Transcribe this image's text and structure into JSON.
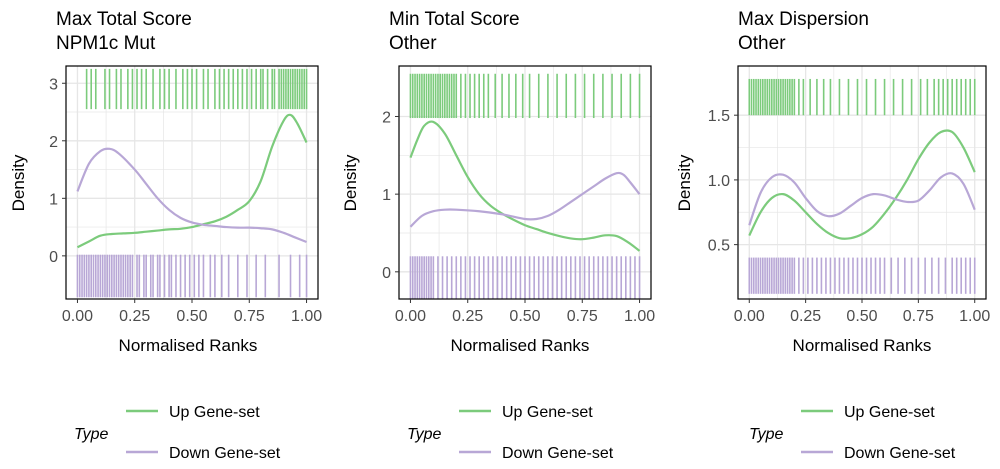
{
  "colors": {
    "up": "#7ccb7c",
    "down": "#b8a7d6",
    "grid": "#e6e6e6",
    "panel_border": "#000000",
    "tick_text": "#4d4d4d"
  },
  "chart_data": [
    {
      "type": "density_barcode",
      "title_line1": "Max Total Score",
      "title_line2": "NPM1c Mut",
      "xlabel": "Normalised Ranks",
      "ylabel": "Density",
      "xlim": [
        -0.05,
        1.05
      ],
      "ylim": [
        -0.75,
        3.3
      ],
      "xticks": [
        0,
        0.25,
        0.5,
        0.75,
        1
      ],
      "xtick_labels": [
        "0.00",
        "0.25",
        "0.50",
        "0.75",
        "1.00"
      ],
      "yticks": [
        0,
        1,
        2,
        3
      ],
      "ytick_labels": [
        "0",
        "1",
        "2",
        "3"
      ],
      "grid": true,
      "legend_title": "Type",
      "legend_position": "bottom",
      "series": [
        {
          "name": "Up Gene-set",
          "x": [
            0.0,
            0.05,
            0.1,
            0.15,
            0.2,
            0.25,
            0.3,
            0.35,
            0.4,
            0.45,
            0.5,
            0.55,
            0.6,
            0.65,
            0.7,
            0.75,
            0.8,
            0.85,
            0.9,
            0.93,
            0.96,
            1.0
          ],
          "y": [
            0.15,
            0.25,
            0.35,
            0.38,
            0.39,
            0.4,
            0.42,
            0.44,
            0.46,
            0.47,
            0.5,
            0.55,
            0.6,
            0.68,
            0.8,
            0.95,
            1.3,
            1.9,
            2.35,
            2.45,
            2.3,
            1.97
          ],
          "barcode_y": [
            2.55,
            3.25
          ],
          "barcode_ranks": [
            0.04,
            0.06,
            0.08,
            0.12,
            0.14,
            0.17,
            0.19,
            0.22,
            0.24,
            0.26,
            0.28,
            0.3,
            0.33,
            0.36,
            0.38,
            0.4,
            0.43,
            0.46,
            0.48,
            0.5,
            0.52,
            0.55,
            0.57,
            0.6,
            0.62,
            0.64,
            0.66,
            0.68,
            0.7,
            0.72,
            0.74,
            0.76,
            0.78,
            0.8,
            0.81,
            0.83,
            0.85,
            0.86,
            0.88,
            0.89,
            0.9,
            0.91,
            0.92,
            0.93,
            0.94,
            0.95,
            0.96,
            0.97,
            0.98,
            0.99,
            1.0
          ]
        },
        {
          "name": "Down Gene-set",
          "x": [
            0.0,
            0.05,
            0.1,
            0.14,
            0.18,
            0.25,
            0.3,
            0.35,
            0.4,
            0.45,
            0.5,
            0.55,
            0.6,
            0.65,
            0.7,
            0.75,
            0.8,
            0.85,
            0.9,
            0.95,
            1.0
          ],
          "y": [
            1.12,
            1.6,
            1.82,
            1.86,
            1.78,
            1.5,
            1.25,
            1.0,
            0.8,
            0.66,
            0.58,
            0.54,
            0.52,
            0.5,
            0.49,
            0.49,
            0.48,
            0.46,
            0.4,
            0.32,
            0.24
          ],
          "barcode_y": [
            -0.72,
            0.02
          ],
          "barcode_ranks": [
            0.0,
            0.01,
            0.02,
            0.03,
            0.04,
            0.05,
            0.06,
            0.07,
            0.08,
            0.09,
            0.1,
            0.11,
            0.12,
            0.13,
            0.14,
            0.15,
            0.16,
            0.17,
            0.18,
            0.19,
            0.2,
            0.21,
            0.22,
            0.23,
            0.24,
            0.26,
            0.27,
            0.29,
            0.3,
            0.32,
            0.33,
            0.35,
            0.36,
            0.38,
            0.4,
            0.41,
            0.43,
            0.45,
            0.47,
            0.49,
            0.51,
            0.53,
            0.55,
            0.58,
            0.6,
            0.63,
            0.66,
            0.7,
            0.74,
            0.78,
            0.82,
            0.88,
            0.93,
            0.97,
            1.0
          ]
        }
      ]
    },
    {
      "type": "density_barcode",
      "title_line1": "Min Total Score",
      "title_line2": "Other",
      "xlabel": "Normalised Ranks",
      "ylabel": "Density",
      "xlim": [
        -0.05,
        1.05
      ],
      "ylim": [
        -0.35,
        2.65
      ],
      "xticks": [
        0,
        0.25,
        0.5,
        0.75,
        1
      ],
      "xtick_labels": [
        "0.00",
        "0.25",
        "0.50",
        "0.75",
        "1.00"
      ],
      "yticks": [
        0,
        1,
        2
      ],
      "ytick_labels": [
        "0",
        "1",
        "2"
      ],
      "grid": true,
      "legend_title": "Type",
      "legend_position": "bottom",
      "series": [
        {
          "name": "Up Gene-set",
          "x": [
            0.0,
            0.03,
            0.06,
            0.1,
            0.15,
            0.2,
            0.25,
            0.3,
            0.35,
            0.4,
            0.45,
            0.5,
            0.55,
            0.6,
            0.65,
            0.7,
            0.75,
            0.8,
            0.85,
            0.9,
            0.95,
            1.0
          ],
          "y": [
            1.47,
            1.7,
            1.88,
            1.93,
            1.78,
            1.5,
            1.22,
            1.0,
            0.85,
            0.75,
            0.67,
            0.6,
            0.55,
            0.5,
            0.46,
            0.43,
            0.42,
            0.44,
            0.47,
            0.46,
            0.38,
            0.27
          ],
          "barcode_y": [
            1.98,
            2.55
          ],
          "barcode_ranks": [
            0.0,
            0.01,
            0.02,
            0.03,
            0.04,
            0.05,
            0.06,
            0.07,
            0.08,
            0.09,
            0.1,
            0.11,
            0.12,
            0.13,
            0.14,
            0.15,
            0.16,
            0.17,
            0.18,
            0.19,
            0.2,
            0.22,
            0.24,
            0.26,
            0.28,
            0.3,
            0.32,
            0.34,
            0.37,
            0.4,
            0.43,
            0.46,
            0.49,
            0.52,
            0.56,
            0.6,
            0.64,
            0.68,
            0.72,
            0.76,
            0.8,
            0.84,
            0.88,
            0.92,
            0.96,
            1.0
          ]
        },
        {
          "name": "Down Gene-set",
          "x": [
            0.0,
            0.05,
            0.1,
            0.15,
            0.2,
            0.3,
            0.4,
            0.5,
            0.55,
            0.6,
            0.65,
            0.7,
            0.75,
            0.8,
            0.85,
            0.9,
            0.93,
            0.96,
            1.0
          ],
          "y": [
            0.58,
            0.72,
            0.78,
            0.8,
            0.8,
            0.78,
            0.74,
            0.68,
            0.68,
            0.72,
            0.8,
            0.9,
            1.0,
            1.1,
            1.2,
            1.27,
            1.25,
            1.15,
            1.0
          ],
          "barcode_y": [
            -0.35,
            0.2
          ],
          "barcode_ranks": [
            0.0,
            0.01,
            0.02,
            0.03,
            0.04,
            0.05,
            0.06,
            0.07,
            0.08,
            0.09,
            0.1,
            0.12,
            0.14,
            0.16,
            0.18,
            0.2,
            0.22,
            0.24,
            0.26,
            0.28,
            0.3,
            0.32,
            0.34,
            0.36,
            0.38,
            0.4,
            0.42,
            0.44,
            0.46,
            0.48,
            0.5,
            0.52,
            0.54,
            0.56,
            0.58,
            0.6,
            0.62,
            0.64,
            0.66,
            0.68,
            0.7,
            0.72,
            0.74,
            0.76,
            0.78,
            0.8,
            0.82,
            0.84,
            0.86,
            0.88,
            0.9,
            0.92,
            0.94,
            0.96,
            0.98,
            1.0
          ]
        }
      ]
    },
    {
      "type": "density_barcode",
      "title_line1": "Max Dispersion",
      "title_line2": "Other",
      "xlabel": "Normalised Ranks",
      "ylabel": "Density",
      "xlim": [
        -0.05,
        1.05
      ],
      "ylim": [
        0.08,
        1.88
      ],
      "xticks": [
        0,
        0.25,
        0.5,
        0.75,
        1
      ],
      "xtick_labels": [
        "0.00",
        "0.25",
        "0.50",
        "0.75",
        "1.00"
      ],
      "yticks": [
        0.5,
        1.0,
        1.5
      ],
      "ytick_labels": [
        "0.5",
        "1.0",
        "1.5"
      ],
      "grid": true,
      "legend_title": "Type",
      "legend_position": "bottom",
      "series": [
        {
          "name": "Up Gene-set",
          "x": [
            0.0,
            0.05,
            0.1,
            0.15,
            0.2,
            0.25,
            0.3,
            0.35,
            0.4,
            0.45,
            0.5,
            0.55,
            0.6,
            0.65,
            0.7,
            0.75,
            0.8,
            0.85,
            0.9,
            0.95,
            1.0
          ],
          "y": [
            0.57,
            0.75,
            0.86,
            0.89,
            0.84,
            0.75,
            0.66,
            0.59,
            0.55,
            0.55,
            0.58,
            0.64,
            0.74,
            0.86,
            1.0,
            1.16,
            1.29,
            1.37,
            1.37,
            1.25,
            1.06
          ],
          "barcode_y": [
            1.5,
            1.78
          ],
          "barcode_ranks": [
            0.0,
            0.01,
            0.02,
            0.03,
            0.04,
            0.05,
            0.06,
            0.07,
            0.08,
            0.09,
            0.1,
            0.11,
            0.12,
            0.13,
            0.14,
            0.15,
            0.16,
            0.17,
            0.18,
            0.19,
            0.2,
            0.22,
            0.24,
            0.27,
            0.3,
            0.33,
            0.36,
            0.4,
            0.44,
            0.48,
            0.52,
            0.56,
            0.6,
            0.64,
            0.68,
            0.72,
            0.76,
            0.79,
            0.82,
            0.84,
            0.86,
            0.88,
            0.9,
            0.92,
            0.94,
            0.96,
            0.98,
            1.0
          ]
        },
        {
          "name": "Down Gene-set",
          "x": [
            0.0,
            0.05,
            0.1,
            0.15,
            0.2,
            0.25,
            0.3,
            0.35,
            0.4,
            0.45,
            0.5,
            0.55,
            0.6,
            0.65,
            0.7,
            0.75,
            0.8,
            0.85,
            0.9,
            0.95,
            1.0
          ],
          "y": [
            0.65,
            0.9,
            1.02,
            1.04,
            0.98,
            0.86,
            0.76,
            0.72,
            0.74,
            0.8,
            0.86,
            0.89,
            0.88,
            0.85,
            0.83,
            0.84,
            0.92,
            1.02,
            1.05,
            0.97,
            0.77
          ],
          "barcode_y": [
            0.12,
            0.4
          ],
          "barcode_ranks": [
            0.0,
            0.01,
            0.02,
            0.03,
            0.04,
            0.05,
            0.06,
            0.07,
            0.08,
            0.09,
            0.1,
            0.11,
            0.12,
            0.13,
            0.14,
            0.15,
            0.16,
            0.17,
            0.18,
            0.19,
            0.2,
            0.22,
            0.24,
            0.26,
            0.28,
            0.3,
            0.32,
            0.34,
            0.36,
            0.38,
            0.4,
            0.42,
            0.44,
            0.46,
            0.48,
            0.5,
            0.52,
            0.54,
            0.56,
            0.58,
            0.6,
            0.63,
            0.66,
            0.69,
            0.72,
            0.75,
            0.78,
            0.81,
            0.84,
            0.87,
            0.9,
            0.92,
            0.94,
            0.96,
            0.98,
            1.0
          ]
        }
      ]
    }
  ]
}
